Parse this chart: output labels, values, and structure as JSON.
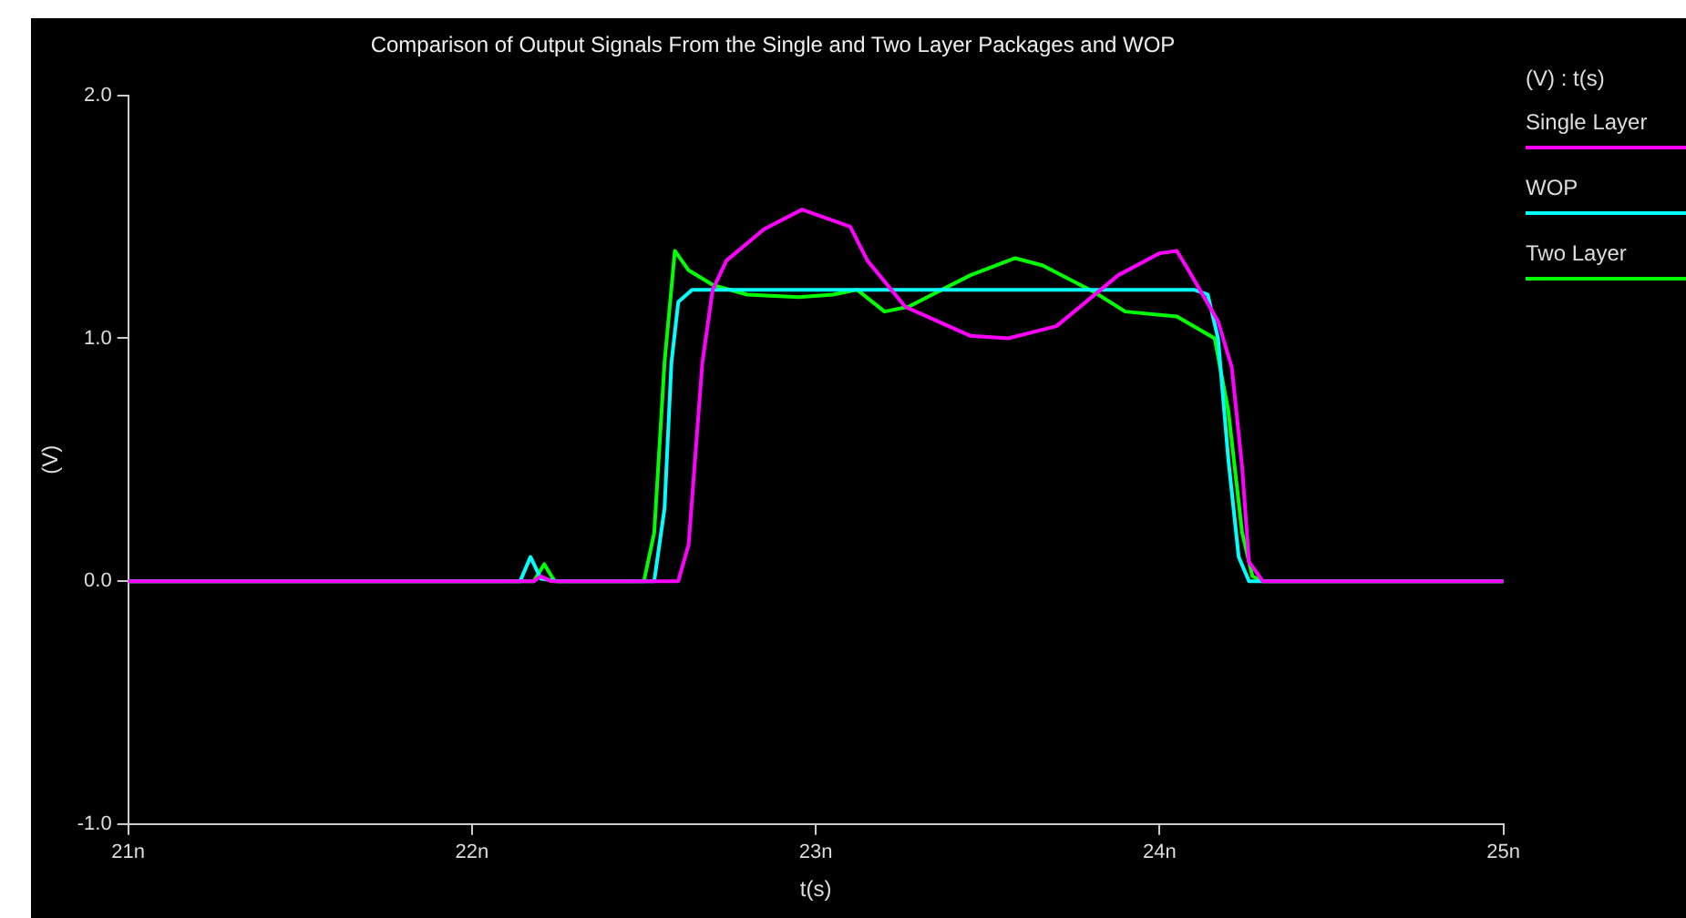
{
  "chart_data": {
    "type": "line",
    "title": "Comparison of Output Signals From the Single and Two Layer Packages and WOP",
    "xlabel": "t(s)",
    "ylabel": "(V)",
    "legend_title": "(V) : t(s)",
    "legend": "right",
    "grid": false,
    "marker": "none",
    "line_style": "solid",
    "xlim": [
      21,
      25
    ],
    "xticks": [
      {
        "value": 21,
        "label": "21n"
      },
      {
        "value": 22,
        "label": "22n"
      },
      {
        "value": 23,
        "label": "23n"
      },
      {
        "value": 24,
        "label": "24n"
      },
      {
        "value": 25,
        "label": "25n"
      }
    ],
    "ylim": [
      -1,
      2
    ],
    "yticks": [
      {
        "value": -1,
        "label": "-1.0"
      },
      {
        "value": 0,
        "label": "0.0"
      },
      {
        "value": 1,
        "label": "1.0"
      },
      {
        "value": 2,
        "label": "2.0"
      }
    ],
    "series": [
      {
        "name": "Single Layer",
        "color": "#ff00ff",
        "x": [
          21,
          22.18,
          22.2,
          22.23,
          22.6,
          22.63,
          22.67,
          22.7,
          22.74,
          22.85,
          22.96,
          23.1,
          23.15,
          23.26,
          23.45,
          23.56,
          23.7,
          23.88,
          24.0,
          24.05,
          24.08,
          24.17,
          24.21,
          24.24,
          24.26,
          24.3,
          25
        ],
        "values": [
          0,
          0,
          0.02,
          0,
          0,
          0.15,
          0.9,
          1.2,
          1.32,
          1.45,
          1.53,
          1.46,
          1.32,
          1.13,
          1.01,
          1.0,
          1.05,
          1.26,
          1.35,
          1.36,
          1.29,
          1.07,
          0.88,
          0.47,
          0.08,
          0,
          0
        ]
      },
      {
        "name": "WOP",
        "color": "#00ffff",
        "x": [
          21,
          22.14,
          22.17,
          22.2,
          22.25,
          22.53,
          22.56,
          22.58,
          22.6,
          22.64,
          24.1,
          24.14,
          24.17,
          24.2,
          24.23,
          24.26,
          25
        ],
        "values": [
          0,
          0,
          0.1,
          0.01,
          0,
          0,
          0.3,
          0.9,
          1.15,
          1.2,
          1.2,
          1.18,
          1.0,
          0.5,
          0.1,
          0,
          0
        ]
      },
      {
        "name": "Two Layer",
        "color": "#00ff00",
        "x": [
          21,
          22.18,
          22.21,
          22.24,
          22.5,
          22.53,
          22.56,
          22.59,
          22.63,
          22.7,
          22.8,
          22.95,
          23.05,
          23.12,
          23.2,
          23.27,
          23.45,
          23.58,
          23.66,
          23.81,
          23.9,
          24.05,
          24.16,
          24.2,
          24.24,
          24.27,
          24.3,
          25
        ],
        "values": [
          0,
          0,
          0.07,
          0,
          0,
          0.2,
          0.9,
          1.36,
          1.28,
          1.22,
          1.18,
          1.17,
          1.18,
          1.2,
          1.11,
          1.13,
          1.26,
          1.33,
          1.3,
          1.19,
          1.11,
          1.09,
          1.0,
          0.7,
          0.2,
          0.02,
          0,
          0
        ]
      }
    ]
  }
}
